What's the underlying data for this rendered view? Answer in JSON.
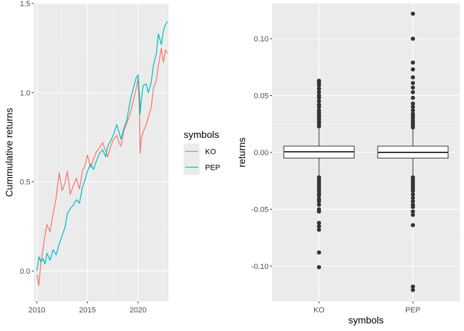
{
  "chart_data": [
    {
      "type": "line",
      "title": "",
      "xlabel": "",
      "ylabel": "Cummulative returns",
      "xlim": [
        2009.7,
        2023.0
      ],
      "ylim": [
        -0.17,
        1.5
      ],
      "x_ticks": [
        2010,
        2015,
        2020
      ],
      "y_ticks": [
        0.0,
        0.5,
        1.0,
        1.5
      ],
      "x_tick_labels": [
        "2010",
        "2015",
        "2020"
      ],
      "y_tick_labels": [
        "0.0",
        "0.5",
        "1.0",
        "1.5"
      ],
      "grid": true,
      "legend": {
        "title": "symbols",
        "position": "right",
        "entries": [
          {
            "label": "KO",
            "color": "#F8766D"
          },
          {
            "label": "PEP",
            "color": "#00BFC4"
          }
        ]
      },
      "series": [
        {
          "name": "KO",
          "color": "#F8766D",
          "x": [
            2010.0,
            2010.2,
            2010.4,
            2010.6,
            2010.8,
            2011.0,
            2011.3,
            2011.6,
            2011.9,
            2012.2,
            2012.5,
            2012.8,
            2013.0,
            2013.3,
            2013.6,
            2013.9,
            2014.2,
            2014.5,
            2014.8,
            2015.0,
            2015.3,
            2015.6,
            2015.9,
            2016.2,
            2016.5,
            2016.8,
            2017.0,
            2017.3,
            2017.6,
            2017.9,
            2018.1,
            2018.3,
            2018.6,
            2018.9,
            2019.2,
            2019.5,
            2019.8,
            2020.0,
            2020.15,
            2020.2,
            2020.3,
            2020.5,
            2020.8,
            2021.0,
            2021.3,
            2021.5,
            2021.8,
            2022.0,
            2022.3,
            2022.5,
            2022.7,
            2022.9
          ],
          "values": [
            -0.02,
            -0.08,
            0.05,
            0.12,
            0.2,
            0.26,
            0.22,
            0.32,
            0.41,
            0.55,
            0.45,
            0.5,
            0.56,
            0.43,
            0.48,
            0.52,
            0.46,
            0.56,
            0.6,
            0.65,
            0.58,
            0.63,
            0.67,
            0.69,
            0.72,
            0.67,
            0.64,
            0.7,
            0.74,
            0.76,
            0.72,
            0.7,
            0.79,
            0.83,
            0.88,
            0.95,
            1.02,
            1.08,
            0.85,
            0.66,
            0.74,
            0.78,
            0.82,
            0.86,
            0.92,
            1.02,
            1.07,
            1.15,
            1.25,
            1.17,
            1.24,
            1.22
          ]
        },
        {
          "name": "PEP",
          "color": "#00BFC4",
          "x": [
            2010.0,
            2010.2,
            2010.4,
            2010.6,
            2010.8,
            2011.0,
            2011.3,
            2011.6,
            2011.9,
            2012.2,
            2012.5,
            2012.8,
            2013.0,
            2013.3,
            2013.6,
            2013.9,
            2014.2,
            2014.5,
            2014.8,
            2015.0,
            2015.3,
            2015.6,
            2015.9,
            2016.2,
            2016.5,
            2016.8,
            2017.0,
            2017.3,
            2017.6,
            2017.9,
            2018.1,
            2018.3,
            2018.6,
            2018.9,
            2019.2,
            2019.5,
            2019.8,
            2020.0,
            2020.15,
            2020.2,
            2020.3,
            2020.5,
            2020.8,
            2021.0,
            2021.3,
            2021.5,
            2021.8,
            2022.0,
            2022.3,
            2022.5,
            2022.7,
            2022.9
          ],
          "values": [
            0.0,
            0.08,
            0.05,
            0.07,
            0.04,
            0.1,
            0.06,
            0.12,
            0.09,
            0.15,
            0.2,
            0.25,
            0.32,
            0.35,
            0.37,
            0.4,
            0.38,
            0.47,
            0.52,
            0.56,
            0.6,
            0.57,
            0.62,
            0.66,
            0.68,
            0.64,
            0.7,
            0.73,
            0.77,
            0.82,
            0.78,
            0.74,
            0.8,
            0.85,
            0.95,
            1.02,
            1.08,
            1.1,
            0.98,
            0.88,
            0.95,
            1.04,
            1.05,
            1.0,
            1.06,
            1.15,
            1.22,
            1.33,
            1.27,
            1.35,
            1.38,
            1.4
          ]
        }
      ]
    },
    {
      "type": "boxplot",
      "title": "",
      "xlabel": "symbols",
      "ylabel": "returns",
      "ylim": [
        -0.131,
        0.131
      ],
      "categories": [
        "KO",
        "PEP"
      ],
      "y_ticks": [
        -0.1,
        -0.05,
        0.0,
        0.05,
        0.1
      ],
      "y_tick_labels": [
        "-0.10",
        "-0.05",
        "0.00",
        "0.05",
        "0.10"
      ],
      "grid": true,
      "boxes": [
        {
          "category": "KO",
          "min": -0.021,
          "q1": -0.005,
          "median": 0.0005,
          "q3": 0.0055,
          "max": 0.022,
          "outliers": [
            0.023,
            0.025,
            0.027,
            0.029,
            0.031,
            0.033,
            0.035,
            0.037,
            0.04,
            0.042,
            0.045,
            0.048,
            0.05,
            0.053,
            0.056,
            0.059,
            0.061,
            0.063,
            -0.022,
            -0.024,
            -0.026,
            -0.028,
            -0.03,
            -0.032,
            -0.034,
            -0.036,
            -0.038,
            -0.041,
            -0.043,
            -0.046,
            -0.05,
            -0.052,
            -0.062,
            -0.065,
            -0.068,
            -0.088,
            -0.101
          ]
        },
        {
          "category": "PEP",
          "min": -0.021,
          "q1": -0.005,
          "median": 0.0,
          "q3": 0.0055,
          "max": 0.021,
          "outliers": [
            0.022,
            0.024,
            0.026,
            0.028,
            0.03,
            0.032,
            0.034,
            0.037,
            0.04,
            0.043,
            0.048,
            0.053,
            0.057,
            0.061,
            0.066,
            0.073,
            0.079,
            0.1,
            0.122,
            -0.022,
            -0.024,
            -0.026,
            -0.028,
            -0.03,
            -0.032,
            -0.034,
            -0.037,
            -0.04,
            -0.043,
            -0.046,
            -0.048,
            -0.052,
            -0.055,
            -0.064,
            -0.118,
            -0.121
          ]
        }
      ]
    }
  ]
}
